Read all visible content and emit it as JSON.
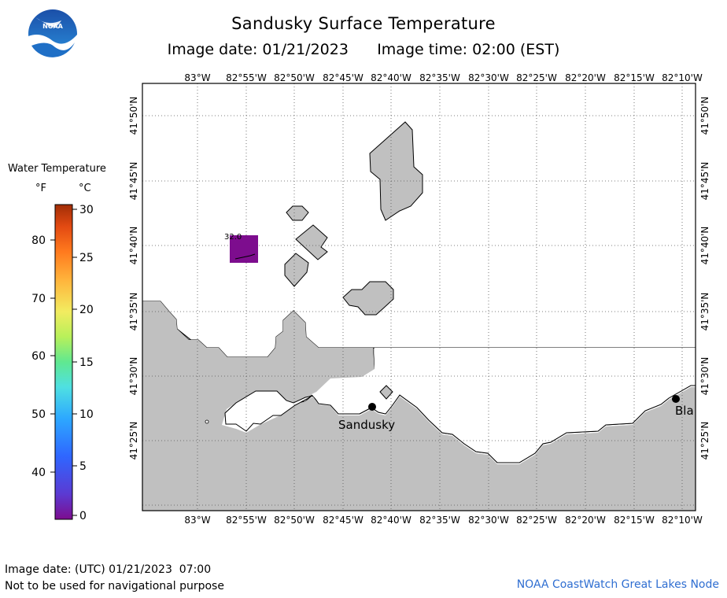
{
  "title": "Sandusky Surface Temperature",
  "subtitle": {
    "image_date": "Image date: 01/21/2023",
    "image_time": "Image time: 02:00 (EST)"
  },
  "logo": {
    "text": "NOAA",
    "icon": "noaa-logo-icon"
  },
  "legend": {
    "title": "Water Temperature",
    "unit_f": "°F",
    "unit_c": "°C",
    "fahrenheit_ticks": [
      "80",
      "70",
      "60",
      "50",
      "40"
    ],
    "celsius_ticks": [
      "30",
      "25",
      "20",
      "15",
      "10",
      "5",
      "0"
    ],
    "colors": [
      "#7d0d8e",
      "#5b3ad2",
      "#2f66ff",
      "#2da8ff",
      "#4fe0e2",
      "#60e890",
      "#b8f05a",
      "#f2ec60",
      "#ffb43c",
      "#ff7a1e",
      "#e34a12",
      "#a12d06"
    ]
  },
  "map": {
    "longitude_labels": [
      "83°W",
      "82°55'W",
      "82°50'W",
      "82°45'W",
      "82°40'W",
      "82°35'W",
      "82°30'W",
      "82°25'W",
      "82°20'W",
      "82°15'W",
      "82°10'W"
    ],
    "latitude_labels": [
      "41°50'N",
      "41°45'N",
      "41°40'N",
      "41°35'N",
      "41°30'N",
      "41°25'N"
    ],
    "land_color": "#c0c0c0",
    "water_color": "#ffffff",
    "city_labels": {
      "sandusky": "Sandusky",
      "blanchard": "Bla"
    },
    "temperature_reading": {
      "label": "32.0",
      "color": "#7d0d8e"
    }
  },
  "footer": {
    "utc_date": "Image date: (UTC) 01/21/2023  07:00",
    "disclaimer": "Not to be used for navigational purpose",
    "credit": "NOAA CoastWatch Great Lakes Node"
  }
}
